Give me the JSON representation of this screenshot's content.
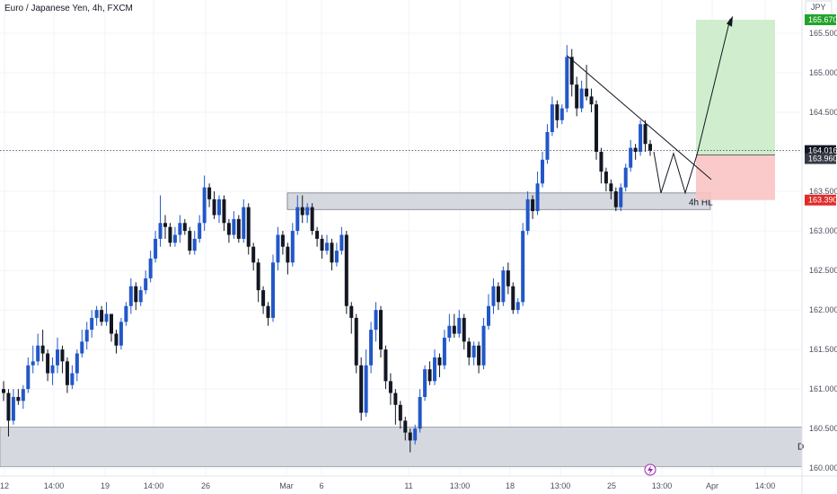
{
  "header": {
    "title": "Euro / Japanese Yen, 4h, FXCM",
    "currency": "JPY"
  },
  "colors": {
    "up": "#2157c9",
    "down": "#131722",
    "grid": "#f0f3fa",
    "zone_fill": "#d1d4dc",
    "zone_border": "#787b86",
    "target_fill": "#c8ebc6",
    "stop_fill": "#f9c4c4",
    "current_tag": "#131722",
    "entry_tag": "#363a45",
    "target_tag": "#22a32b",
    "stop_tag": "#e02b2b",
    "lightning": "#9c27b0"
  },
  "chart_data": {
    "type": "candlestick",
    "title": "Euro / Japanese Yen, 4h, FXCM",
    "ylim": [
      159.9,
      165.92
    ],
    "y_ticks": [
      "165.500",
      "165.000",
      "164.500",
      "164.000",
      "163.500",
      "163.000",
      "162.500",
      "162.000",
      "161.500",
      "161.000",
      "160.500",
      "160.000"
    ],
    "x_ticks": [
      "12",
      "14:00",
      "19",
      "14:00",
      "26",
      "Mar",
      "6",
      "11",
      "13:00",
      "18",
      "13:00",
      "25",
      "13:00",
      "Apr",
      "14:00"
    ],
    "grid": true,
    "current_price": "164.016",
    "levels": {
      "target": "165.670",
      "entry": "163.960",
      "stop": "163.390"
    },
    "zone_label": "4h HL",
    "bottom_zone_label": "D",
    "candles": [
      [
        161,
        160.95,
        161.1,
        160.85
      ],
      [
        160.95,
        160.6,
        161.0,
        160.4
      ],
      [
        160.6,
        160.9,
        161.0,
        160.55
      ],
      [
        160.9,
        160.85,
        161.0,
        160.8
      ],
      [
        160.85,
        161.0,
        161.05,
        160.75
      ],
      [
        161.0,
        161.3,
        161.4,
        160.95
      ],
      [
        161.3,
        161.35,
        161.55,
        161.2
      ],
      [
        161.35,
        161.55,
        161.7,
        161.3
      ],
      [
        161.55,
        161.45,
        161.75,
        161.35
      ],
      [
        161.45,
        161.2,
        161.5,
        161.1
      ],
      [
        161.2,
        161.3,
        161.4,
        161.05
      ],
      [
        161.3,
        161.5,
        161.65,
        161.2
      ],
      [
        161.5,
        161.35,
        161.55,
        161.2
      ],
      [
        161.35,
        161.05,
        161.4,
        160.95
      ],
      [
        161.05,
        161.2,
        161.3,
        161.0
      ],
      [
        161.2,
        161.45,
        161.5,
        161.1
      ],
      [
        161.45,
        161.6,
        161.75,
        161.4
      ],
      [
        161.6,
        161.75,
        161.85,
        161.5
      ],
      [
        161.75,
        161.9,
        162.0,
        161.65
      ],
      [
        161.9,
        162.0,
        162.05,
        161.8
      ],
      [
        162.0,
        161.85,
        162.05,
        161.8
      ],
      [
        161.85,
        161.95,
        162.1,
        161.8
      ],
      [
        161.95,
        161.7,
        161.95,
        161.6
      ],
      [
        161.7,
        161.55,
        161.75,
        161.45
      ],
      [
        161.55,
        161.85,
        161.9,
        161.5
      ],
      [
        161.85,
        162.05,
        162.1,
        161.8
      ],
      [
        162.05,
        162.3,
        162.4,
        161.95
      ],
      [
        162.3,
        162.1,
        162.35,
        162.0
      ],
      [
        162.1,
        162.25,
        162.3,
        162.05
      ],
      [
        162.25,
        162.4,
        162.5,
        162.2
      ],
      [
        162.4,
        162.65,
        162.75,
        162.35
      ],
      [
        162.65,
        162.9,
        163.0,
        162.6
      ],
      [
        162.9,
        163.1,
        163.45,
        162.8
      ],
      [
        163.1,
        163.05,
        163.2,
        162.9
      ],
      [
        163.05,
        162.85,
        163.1,
        162.8
      ],
      [
        162.85,
        162.95,
        163.05,
        162.8
      ],
      [
        162.95,
        163.1,
        163.2,
        162.85
      ],
      [
        163.1,
        163.0,
        163.15,
        162.95
      ],
      [
        163.0,
        162.75,
        163.05,
        162.7
      ],
      [
        162.75,
        162.9,
        163.0,
        162.7
      ],
      [
        162.9,
        163.1,
        163.2,
        162.85
      ],
      [
        163.1,
        163.55,
        163.7,
        163.0
      ],
      [
        163.55,
        163.4,
        163.6,
        163.3
      ],
      [
        163.4,
        163.2,
        163.5,
        163.15
      ],
      [
        163.2,
        163.4,
        163.45,
        163.1
      ],
      [
        163.4,
        163.1,
        163.45,
        163.0
      ],
      [
        163.1,
        162.95,
        163.15,
        162.85
      ],
      [
        162.95,
        163.15,
        163.25,
        162.9
      ],
      [
        163.15,
        162.9,
        163.2,
        162.85
      ],
      [
        162.9,
        163.3,
        163.4,
        162.85
      ],
      [
        163.3,
        162.8,
        163.35,
        162.7
      ],
      [
        162.8,
        162.6,
        162.85,
        162.5
      ],
      [
        162.6,
        162.25,
        162.65,
        162.1
      ],
      [
        162.25,
        162.05,
        162.3,
        161.95
      ],
      [
        162.05,
        161.9,
        162.1,
        161.8
      ],
      [
        161.9,
        162.6,
        162.7,
        161.85
      ],
      [
        162.6,
        162.95,
        163.05,
        162.5
      ],
      [
        162.95,
        162.8,
        163.0,
        162.7
      ],
      [
        162.8,
        162.6,
        162.85,
        162.45
      ],
      [
        162.6,
        163.0,
        163.1,
        162.55
      ],
      [
        163.0,
        163.3,
        163.45,
        162.95
      ],
      [
        163.3,
        163.2,
        163.45,
        163.1
      ],
      [
        163.2,
        163.3,
        163.35,
        163.1
      ],
      [
        163.3,
        163.0,
        163.35,
        162.95
      ],
      [
        163.0,
        162.9,
        163.05,
        162.8
      ],
      [
        162.9,
        162.75,
        162.95,
        162.65
      ],
      [
        162.75,
        162.85,
        162.95,
        162.7
      ],
      [
        162.85,
        162.6,
        162.9,
        162.5
      ],
      [
        162.6,
        162.75,
        162.85,
        162.55
      ],
      [
        162.75,
        162.95,
        163.05,
        162.7
      ],
      [
        162.95,
        162.05,
        163.0,
        161.95
      ],
      [
        162.05,
        161.9,
        162.1,
        161.7
      ],
      [
        161.9,
        161.3,
        161.95,
        161.2
      ],
      [
        161.3,
        160.7,
        161.4,
        160.6
      ],
      [
        160.7,
        161.3,
        161.5,
        160.65
      ],
      [
        161.3,
        161.75,
        161.85,
        161.2
      ],
      [
        161.75,
        162.0,
        162.1,
        161.6
      ],
      [
        162.0,
        161.5,
        162.05,
        161.4
      ],
      [
        161.5,
        161.1,
        161.55,
        161.0
      ],
      [
        161.1,
        160.95,
        161.2,
        160.8
      ],
      [
        160.95,
        160.8,
        161.0,
        160.55
      ],
      [
        160.8,
        160.6,
        160.85,
        160.5
      ],
      [
        160.6,
        160.45,
        160.65,
        160.35
      ],
      [
        160.45,
        160.35,
        160.5,
        160.2
      ],
      [
        160.35,
        160.5,
        160.55,
        160.3
      ],
      [
        160.5,
        160.9,
        161.0,
        160.45
      ],
      [
        160.9,
        161.25,
        161.3,
        160.85
      ],
      [
        161.25,
        161.1,
        161.35,
        161.05
      ],
      [
        161.1,
        161.4,
        161.5,
        161.05
      ],
      [
        161.4,
        161.3,
        161.45,
        161.15
      ],
      [
        161.3,
        161.65,
        161.75,
        161.25
      ],
      [
        161.65,
        161.8,
        161.95,
        161.6
      ],
      [
        161.8,
        161.7,
        161.95,
        161.65
      ],
      [
        161.7,
        161.9,
        162.0,
        161.65
      ],
      [
        161.9,
        161.6,
        161.95,
        161.5
      ],
      [
        161.6,
        161.4,
        161.65,
        161.3
      ],
      [
        161.4,
        161.55,
        161.6,
        161.3
      ],
      [
        161.55,
        161.3,
        161.6,
        161.2
      ],
      [
        161.3,
        161.8,
        161.9,
        161.25
      ],
      [
        161.8,
        162.05,
        162.2,
        161.75
      ],
      [
        162.05,
        162.3,
        162.4,
        161.95
      ],
      [
        162.3,
        162.1,
        162.35,
        162.0
      ],
      [
        162.1,
        162.5,
        162.55,
        162.05
      ],
      [
        162.5,
        162.3,
        162.6,
        162.2
      ],
      [
        162.3,
        162.0,
        162.35,
        161.95
      ],
      [
        162.0,
        162.1,
        162.15,
        161.95
      ],
      [
        162.1,
        163.0,
        163.1,
        162.05
      ],
      [
        163.0,
        163.4,
        163.5,
        162.95
      ],
      [
        163.4,
        163.25,
        163.45,
        163.15
      ],
      [
        163.25,
        163.6,
        163.75,
        163.2
      ],
      [
        163.6,
        163.9,
        164.0,
        163.55
      ],
      [
        163.9,
        164.25,
        164.35,
        163.85
      ],
      [
        164.25,
        164.6,
        164.7,
        164.2
      ],
      [
        164.6,
        164.4,
        164.65,
        164.3
      ],
      [
        164.4,
        164.55,
        164.6,
        164.35
      ],
      [
        164.55,
        165.2,
        165.35,
        164.5
      ],
      [
        165.2,
        164.85,
        165.3,
        164.7
      ],
      [
        164.85,
        164.55,
        164.95,
        164.45
      ],
      [
        164.55,
        164.8,
        164.9,
        164.5
      ],
      [
        164.8,
        164.7,
        165.1,
        164.65
      ],
      [
        164.7,
        164.6,
        164.8,
        164.5
      ],
      [
        164.6,
        164.0,
        164.65,
        163.9
      ],
      [
        164.0,
        163.75,
        164.05,
        163.6
      ],
      [
        163.75,
        163.6,
        163.8,
        163.5
      ],
      [
        163.6,
        163.5,
        163.65,
        163.4
      ],
      [
        163.5,
        163.3,
        163.55,
        163.25
      ],
      [
        163.3,
        163.55,
        163.6,
        163.25
      ],
      [
        163.55,
        163.8,
        163.85,
        163.5
      ],
      [
        163.8,
        164.05,
        164.15,
        163.75
      ],
      [
        164.05,
        164.0,
        164.1,
        163.9
      ],
      [
        164.0,
        164.35,
        164.4,
        163.95
      ],
      [
        164.35,
        164.1,
        164.4,
        164.0
      ],
      [
        164.1,
        164.016,
        164.15,
        163.95
      ]
    ]
  },
  "bottom_icon": "lightning-icon"
}
